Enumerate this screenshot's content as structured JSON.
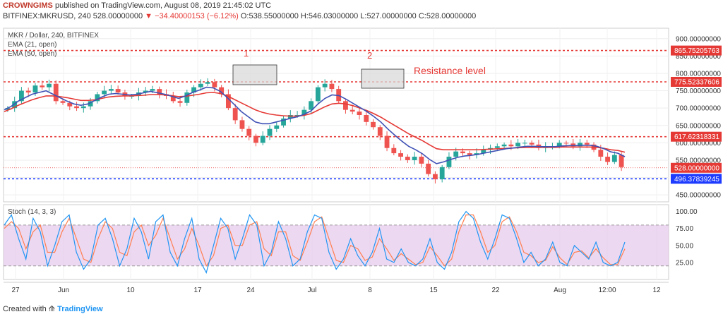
{
  "header": {
    "author": "CROWNGIMS",
    "published_text": "published on TradingView.com, August 08, 2019 21:45:02 UTC",
    "symbol_line": "BITFINEX:MKRUSD, 240  528.00000000",
    "change_text": "▼ −34.40000153 (−6.12%)",
    "ohlc_text": "O:538.55000000 H:546.03000000 L:527.00000000 C:528.00000000"
  },
  "footer": {
    "created_with": "Created with",
    "brand": "TradingView"
  },
  "legend": {
    "title": "MKR / Dollar, 240, BITFINEX",
    "ema21": "EMA (21, open)",
    "ema50": "EMA (50, open)",
    "stoch": "Stoch (14, 3, 3)"
  },
  "annotations": {
    "box1_label": "1",
    "box2_label": "2",
    "resistance": "Resistance level"
  },
  "colors": {
    "bull": "#26a69a",
    "bear": "#ef5350",
    "ema21": "#3f51b5",
    "ema50": "#e53935",
    "level_red": "#e53935",
    "level_blue": "#1e3cff",
    "stoch_k": "#2196f3",
    "stoch_d": "#ff7f50",
    "stoch_band": "#e1bee7"
  },
  "chart_data": {
    "type": "candlestick",
    "title": "MKR / Dollar, 240, BITFINEX",
    "ylim": [
      430,
      930
    ],
    "y_ticks": [
      "900.00000000",
      "850.00000000",
      "800.00000000",
      "750.00000000",
      "700.00000000",
      "650.00000000",
      "600.00000000",
      "550.00000000",
      "500.00000000",
      "450.00000000"
    ],
    "y_tick_values": [
      900,
      850,
      800,
      750,
      700,
      650,
      600,
      550,
      500,
      450
    ],
    "x_ticks": [
      "27",
      "Jun",
      "10",
      "17",
      "24",
      "Jul",
      "8",
      "15",
      "22",
      "Aug",
      "12:00",
      "12"
    ],
    "levels": [
      {
        "value": 865.75205763,
        "label": "865.75205763",
        "color": "red"
      },
      {
        "value": 775.52337606,
        "label": "775.52337606",
        "color": "red"
      },
      {
        "value": 617.62318331,
        "label": "617.62318331",
        "color": "red"
      },
      {
        "value": 528.0,
        "label": "528.00000000",
        "color": "red",
        "dotted": true
      },
      {
        "value": 496.37839245,
        "label": "496.37839245",
        "color": "blue"
      }
    ],
    "close_path": [
      700,
      720,
      750,
      745,
      765,
      760,
      770,
      720,
      715,
      705,
      700,
      705,
      720,
      740,
      750,
      755,
      745,
      735,
      735,
      745,
      750,
      755,
      740,
      735,
      720,
      715,
      745,
      760,
      770,
      775,
      760,
      740,
      700,
      665,
      640,
      620,
      600,
      620,
      640,
      650,
      670,
      680,
      680,
      695,
      720,
      760,
      770,
      755,
      720,
      695,
      690,
      680,
      660,
      645,
      620,
      585,
      570,
      560,
      550,
      560,
      540,
      510,
      495,
      530,
      560,
      575,
      570,
      565,
      570,
      580,
      585,
      590,
      595,
      590,
      600,
      600,
      595,
      585,
      590,
      590,
      600,
      598,
      590,
      600,
      595,
      580,
      560,
      545,
      565,
      530
    ],
    "ema21_path": [
      695,
      705,
      720,
      730,
      740,
      745,
      750,
      740,
      730,
      720,
      712,
      708,
      712,
      722,
      732,
      740,
      742,
      740,
      738,
      740,
      744,
      748,
      744,
      740,
      734,
      728,
      735,
      745,
      752,
      760,
      758,
      748,
      730,
      710,
      690,
      675,
      660,
      655,
      655,
      660,
      665,
      670,
      675,
      682,
      692,
      712,
      728,
      738,
      736,
      726,
      714,
      702,
      690,
      676,
      660,
      640,
      622,
      605,
      590,
      580,
      568,
      552,
      540,
      545,
      552,
      558,
      562,
      564,
      567,
      571,
      575,
      579,
      583,
      585,
      588,
      590,
      590,
      589,
      589,
      589,
      591,
      592,
      592,
      593,
      593,
      590,
      583,
      574,
      570,
      560
    ],
    "ema50_path": [
      690,
      698,
      708,
      716,
      724,
      730,
      735,
      735,
      733,
      730,
      726,
      722,
      722,
      724,
      728,
      732,
      734,
      735,
      735,
      736,
      737,
      739,
      739,
      738,
      736,
      733,
      734,
      737,
      740,
      744,
      745,
      742,
      735,
      725,
      715,
      705,
      695,
      688,
      683,
      680,
      678,
      677,
      677,
      679,
      684,
      694,
      704,
      712,
      714,
      712,
      707,
      700,
      693,
      684,
      674,
      662,
      650,
      638,
      626,
      616,
      606,
      594,
      583,
      580,
      580,
      580,
      580,
      580,
      580,
      581,
      582,
      583,
      584,
      585,
      586,
      587,
      587,
      587,
      587,
      587,
      588,
      588,
      588,
      588,
      588,
      587,
      584,
      580,
      578,
      573
    ],
    "stoch_ylim": [
      0,
      110
    ],
    "stoch_ticks": [
      "100.00",
      "75.00",
      "50.00",
      "25.00"
    ],
    "stoch_tick_values": [
      100,
      75,
      50,
      25
    ],
    "stoch_bands": [
      80,
      20
    ],
    "stoch_k": [
      80,
      95,
      60,
      30,
      90,
      70,
      20,
      50,
      85,
      95,
      40,
      15,
      30,
      80,
      90,
      60,
      20,
      45,
      90,
      70,
      30,
      85,
      95,
      40,
      20,
      60,
      90,
      30,
      10,
      50,
      90,
      75,
      30,
      60,
      95,
      80,
      20,
      40,
      85,
      60,
      20,
      30,
      70,
      95,
      90,
      40,
      15,
      30,
      60,
      35,
      20,
      40,
      75,
      30,
      25,
      45,
      25,
      20,
      30,
      60,
      25,
      15,
      40,
      85,
      100,
      90,
      55,
      30,
      60,
      95,
      90,
      60,
      25,
      40,
      20,
      30,
      55,
      25,
      20,
      50,
      40,
      30,
      55,
      25,
      20,
      25,
      55
    ],
    "stoch_d": [
      75,
      85,
      75,
      45,
      70,
      80,
      40,
      40,
      70,
      90,
      60,
      30,
      25,
      60,
      85,
      75,
      40,
      35,
      70,
      80,
      50,
      65,
      90,
      60,
      30,
      45,
      75,
      50,
      20,
      35,
      75,
      80,
      50,
      50,
      80,
      85,
      45,
      35,
      70,
      70,
      35,
      28,
      55,
      85,
      92,
      60,
      28,
      25,
      50,
      45,
      28,
      33,
      60,
      45,
      28,
      38,
      30,
      22,
      25,
      48,
      35,
      20,
      30,
      70,
      95,
      95,
      70,
      40,
      50,
      85,
      92,
      70,
      40,
      35,
      25,
      28,
      48,
      32,
      22,
      40,
      42,
      32,
      45,
      32,
      22,
      22,
      45
    ]
  }
}
